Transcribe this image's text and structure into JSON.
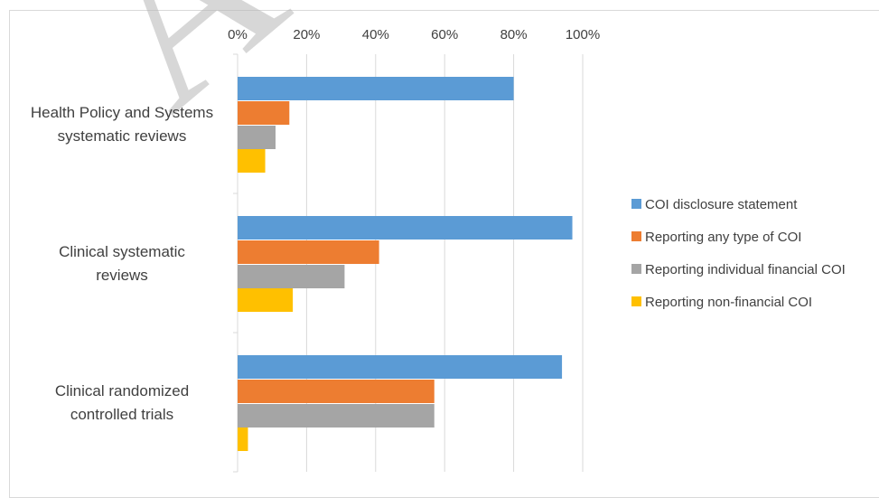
{
  "chart_data": {
    "type": "bar",
    "orientation": "horizontal",
    "categories": [
      [
        "Health Policy and Systems",
        "systematic reviews"
      ],
      [
        "Clinical systematic",
        "reviews"
      ],
      [
        "Clinical randomized",
        "controlled trials"
      ]
    ],
    "series": [
      {
        "name": "COI disclosure statement",
        "color": "#5b9bd5",
        "values": [
          80,
          97,
          94
        ]
      },
      {
        "name": "Reporting any type of COI",
        "color": "#ed7d31",
        "values": [
          15,
          41,
          57
        ]
      },
      {
        "name": "Reporting individual financial COI",
        "color": "#a5a5a5",
        "values": [
          11,
          31,
          57
        ]
      },
      {
        "name": "Reporting non-financial COI",
        "color": "#ffc000",
        "values": [
          8,
          16,
          3
        ]
      }
    ],
    "xlim": [
      0,
      100
    ],
    "x_ticks": [
      "0%",
      "20%",
      "40%",
      "60%",
      "80%",
      "100%"
    ],
    "x_axis_position": "top",
    "grid": true,
    "legend_position": "right",
    "watermark": "A"
  }
}
